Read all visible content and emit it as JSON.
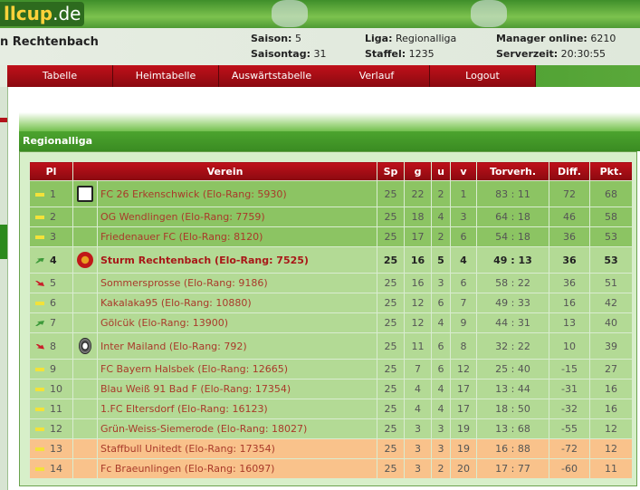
{
  "site": {
    "logo_text": "llcup",
    "logo_tld": ".de"
  },
  "header": {
    "team": "n Rechtenbach",
    "saison_label": "Saison:",
    "saison": "5",
    "saisontag_label": "Saisontag:",
    "saisontag": "31",
    "liga_label": "Liga:",
    "liga": "Regionalliga",
    "staffel_label": "Staffel:",
    "staffel": "1235",
    "manager_label": "Manager online:",
    "manager": "6210",
    "serverzeit_label": "Serverzeit:",
    "serverzeit": "20:30:55"
  },
  "nav": [
    "Tabelle",
    "Heimtabelle",
    "Auswärtstabelle",
    "Verlauf",
    "Logout"
  ],
  "section_title": "Regionalliga",
  "columns": [
    "Pl",
    "Verein",
    "Sp",
    "g",
    "u",
    "v",
    "Torverh.",
    "Diff.",
    "Pkt."
  ],
  "colors": {
    "promotion": "#8cc463",
    "normal": "#b3da95",
    "relegation": "#f9c28b",
    "nav": "#b0101a"
  },
  "rows": [
    {
      "pl": "1",
      "trend": "same",
      "crest": "erkenschwick-logo",
      "club": "FC 26 Erkenschwick (Elo-Rang: 5930)",
      "sp": "25",
      "g": "22",
      "u": "2",
      "v": "1",
      "tore": "83 : 11",
      "diff": "72",
      "pkt": "68",
      "zone": "top"
    },
    {
      "pl": "2",
      "trend": "same",
      "crest": "",
      "club": "OG Wendlingen (Elo-Rang: 7759)",
      "sp": "25",
      "g": "18",
      "u": "4",
      "v": "3",
      "tore": "64 : 18",
      "diff": "46",
      "pkt": "58",
      "zone": "top"
    },
    {
      "pl": "3",
      "trend": "same",
      "crest": "",
      "club": "Friedenauer FC (Elo-Rang: 8120)",
      "sp": "25",
      "g": "17",
      "u": "2",
      "v": "6",
      "tore": "54 : 18",
      "diff": "36",
      "pkt": "53",
      "zone": "top"
    },
    {
      "pl": "4",
      "trend": "up",
      "crest": "sturm-logo",
      "club": "Sturm Rechtenbach (Elo-Rang: 7525)",
      "sp": "25",
      "g": "16",
      "u": "5",
      "v": "4",
      "tore": "49 : 13",
      "diff": "36",
      "pkt": "53",
      "zone": "mid",
      "own": true
    },
    {
      "pl": "5",
      "trend": "down",
      "crest": "",
      "club": "Sommersprosse (Elo-Rang: 9186)",
      "sp": "25",
      "g": "16",
      "u": "3",
      "v": "6",
      "tore": "58 : 22",
      "diff": "36",
      "pkt": "51",
      "zone": "mid"
    },
    {
      "pl": "6",
      "trend": "same",
      "crest": "",
      "club": "Kakalaka95 (Elo-Rang: 10880)",
      "sp": "25",
      "g": "12",
      "u": "6",
      "v": "7",
      "tore": "49 : 33",
      "diff": "16",
      "pkt": "42",
      "zone": "mid"
    },
    {
      "pl": "7",
      "trend": "up",
      "crest": "",
      "club": "Gölcük (Elo-Rang: 13900)",
      "sp": "25",
      "g": "12",
      "u": "4",
      "v": "9",
      "tore": "44 : 31",
      "diff": "13",
      "pkt": "40",
      "zone": "mid"
    },
    {
      "pl": "8",
      "trend": "down",
      "crest": "inter-logo",
      "club": "Inter Mailand (Elo-Rang: 792)",
      "sp": "25",
      "g": "11",
      "u": "6",
      "v": "8",
      "tore": "32 : 22",
      "diff": "10",
      "pkt": "39",
      "zone": "mid"
    },
    {
      "pl": "9",
      "trend": "same",
      "crest": "",
      "club": "FC Bayern Halsbek (Elo-Rang: 12665)",
      "sp": "25",
      "g": "7",
      "u": "6",
      "v": "12",
      "tore": "25 : 40",
      "diff": "-15",
      "pkt": "27",
      "zone": "mid"
    },
    {
      "pl": "10",
      "trend": "same",
      "crest": "",
      "club": "Blau Weiß 91 Bad F (Elo-Rang: 17354)",
      "sp": "25",
      "g": "4",
      "u": "4",
      "v": "17",
      "tore": "13 : 44",
      "diff": "-31",
      "pkt": "16",
      "zone": "mid"
    },
    {
      "pl": "11",
      "trend": "same",
      "crest": "",
      "club": "1.FC Eltersdorf (Elo-Rang: 16123)",
      "sp": "25",
      "g": "4",
      "u": "4",
      "v": "17",
      "tore": "18 : 50",
      "diff": "-32",
      "pkt": "16",
      "zone": "mid"
    },
    {
      "pl": "12",
      "trend": "same",
      "crest": "",
      "club": "Grün-Weiss-Siemerode (Elo-Rang: 18027)",
      "sp": "25",
      "g": "3",
      "u": "3",
      "v": "19",
      "tore": "13 : 68",
      "diff": "-55",
      "pkt": "12",
      "zone": "mid"
    },
    {
      "pl": "13",
      "trend": "same",
      "crest": "",
      "club": "Staffbull Unitedt (Elo-Rang: 17354)",
      "sp": "25",
      "g": "3",
      "u": "3",
      "v": "19",
      "tore": "16 : 88",
      "diff": "-72",
      "pkt": "12",
      "zone": "rel"
    },
    {
      "pl": "14",
      "trend": "same",
      "crest": "",
      "club": "Fc Braeunlingen (Elo-Rang: 16097)",
      "sp": "25",
      "g": "3",
      "u": "2",
      "v": "20",
      "tore": "17 : 77",
      "diff": "-60",
      "pkt": "11",
      "zone": "rel"
    }
  ]
}
